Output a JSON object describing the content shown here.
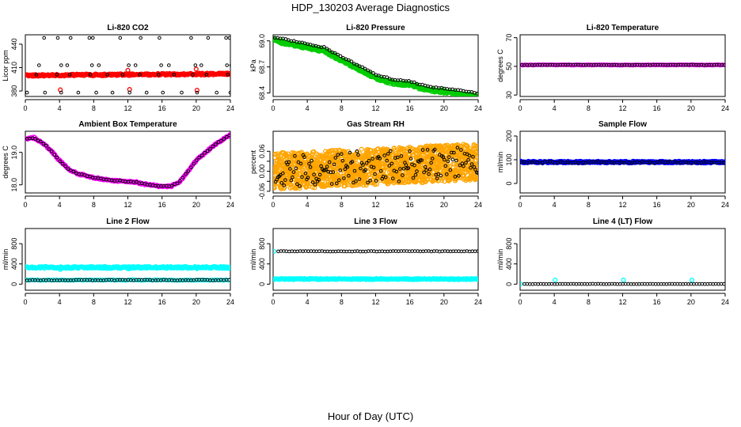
{
  "title": "HDP_130203  Average Diagnostics",
  "xlabel": "Hour of Day (UTC)",
  "colors": {
    "red": "#ff0000",
    "green": "#00cc00",
    "magenta": "#ff00ff",
    "orange": "#ffa500",
    "blue": "#0000ff",
    "cyan": "#00ffff",
    "black": "#000000"
  },
  "chart_data": [
    {
      "type": "scatter",
      "title": "Li-820 CO2",
      "ylabel": "Licor ppm",
      "xlim": [
        0,
        24
      ],
      "ylim": [
        373,
        452
      ],
      "xticks": [
        0,
        4,
        8,
        12,
        16,
        20,
        24
      ],
      "yticks": [
        380,
        410,
        440
      ],
      "series": [
        {
          "color": "red",
          "kind": "dense",
          "from": 0,
          "to": 24,
          "step": 0.08,
          "base": 400.0,
          "slope": 0.08,
          "noise": 1.2
        },
        {
          "color": "red",
          "kind": "points",
          "x": [
            4.1,
            12.2,
            20.1,
            12.0,
            20.0
          ],
          "y": [
            381.5,
            382.0,
            381.0,
            406.5,
            408.0
          ]
        },
        {
          "color": "black",
          "kind": "points",
          "x": [
            0.2,
            2.3,
            4.2,
            6.2,
            8.3,
            10.2,
            12.2,
            14.2,
            16.1,
            18.3,
            20.1,
            22.4,
            24.0,
            1.3,
            3.7,
            5.2,
            7.6,
            9.6,
            11.4,
            13.4,
            15.6,
            17.4,
            19.6,
            21.2,
            23.7,
            1.6,
            4.2,
            4.9,
            7.8,
            8.6,
            12.1,
            12.9,
            15.9,
            16.8,
            19.9,
            20.6,
            23.6,
            24.1,
            2.2,
            3.8,
            5.3,
            7.5,
            7.9,
            11.1,
            13.5,
            15.7,
            19.4,
            21.4,
            23.5,
            23.9
          ],
          "y": [
            378.0,
            378.0,
            378.0,
            378.0,
            378.0,
            378.0,
            378.0,
            378.0,
            378.0,
            378.0,
            378.0,
            378.0,
            378.0,
            401.0,
            401.0,
            401.0,
            401.0,
            401.0,
            401.0,
            401.0,
            401.0,
            401.0,
            401.0,
            401.0,
            401.0,
            413.0,
            413.0,
            413.0,
            413.0,
            413.0,
            413.0,
            413.0,
            413.0,
            413.0,
            413.0,
            413.0,
            413.0,
            413.0,
            448.0,
            448.0,
            448.0,
            448.0,
            448.0,
            448.0,
            448.0,
            448.0,
            448.0,
            448.0,
            448.0,
            448.0
          ]
        }
      ]
    },
    {
      "type": "scatter",
      "title": "Li-820 Pressure",
      "ylabel": "kPa",
      "xlim": [
        0,
        24
      ],
      "ylim": [
        68.36,
        69.07
      ],
      "xticks": [
        0,
        4,
        8,
        12,
        16,
        20,
        24
      ],
      "yticks": [
        68.4,
        68.7,
        69.0
      ],
      "yticklabels": [
        "68.4",
        "68.7",
        "69.0"
      ],
      "series": [
        {
          "color": "green",
          "kind": "dense",
          "from": 0,
          "to": 24,
          "step": 0.06,
          "curve": [
            [
              0,
              69.03
            ],
            [
              2,
              68.99
            ],
            [
              4,
              68.95
            ],
            [
              6,
              68.91
            ],
            [
              8,
              68.8
            ],
            [
              10,
              68.7
            ],
            [
              12,
              68.6
            ],
            [
              14,
              68.54
            ],
            [
              16,
              68.52
            ],
            [
              18,
              68.46
            ],
            [
              20,
              68.44
            ],
            [
              22,
              68.41
            ],
            [
              24,
              68.38
            ]
          ],
          "offset": -0.025,
          "noise": 0.018
        },
        {
          "color": "black",
          "kind": "dense",
          "from": 0.2,
          "to": 24,
          "step": 0.32,
          "curve": [
            [
              0,
              69.03
            ],
            [
              2,
              68.99
            ],
            [
              4,
              68.95
            ],
            [
              6,
              68.91
            ],
            [
              8,
              68.8
            ],
            [
              10,
              68.7
            ],
            [
              12,
              68.6
            ],
            [
              14,
              68.54
            ],
            [
              16,
              68.52
            ],
            [
              18,
              68.46
            ],
            [
              20,
              68.44
            ],
            [
              22,
              68.41
            ],
            [
              24,
              68.38
            ]
          ],
          "offset": 0.015,
          "noise": 0.006
        }
      ]
    },
    {
      "type": "scatter",
      "title": "Li-820 Temperature",
      "ylabel": "degrees C",
      "xlim": [
        0,
        24
      ],
      "ylim": [
        29,
        72
      ],
      "xticks": [
        0,
        4,
        8,
        12,
        16,
        20,
        24
      ],
      "yticks": [
        30,
        50,
        70
      ],
      "series": [
        {
          "color": "magenta",
          "kind": "dense",
          "from": 0,
          "to": 24,
          "step": 0.3,
          "base": 51.0,
          "noise": 0.15
        },
        {
          "color": "black",
          "kind": "dense",
          "from": 0.2,
          "to": 24,
          "step": 0.3,
          "base": 51.0,
          "noise": 0.15
        }
      ]
    },
    {
      "type": "scatter",
      "title": "Ambient Box Temperature",
      "ylabel": "degrees C",
      "xlim": [
        0,
        24
      ],
      "ylim": [
        17.75,
        19.65
      ],
      "xticks": [
        0,
        4,
        8,
        12,
        16,
        20,
        24
      ],
      "yticks": [
        18.0,
        19.0
      ],
      "yticklabels": [
        "18.0",
        "19.0"
      ],
      "series": [
        {
          "color": "magenta",
          "kind": "dense",
          "from": 0,
          "to": 24,
          "step": 0.1,
          "curve": [
            [
              0,
              19.4
            ],
            [
              1,
              19.45
            ],
            [
              2,
              19.3
            ],
            [
              3,
              19.05
            ],
            [
              4,
              18.75
            ],
            [
              5,
              18.5
            ],
            [
              6,
              18.35
            ],
            [
              8,
              18.22
            ],
            [
              10,
              18.14
            ],
            [
              12,
              18.1
            ],
            [
              13,
              18.08
            ],
            [
              14,
              18.02
            ],
            [
              16,
              17.95
            ],
            [
              17,
              17.95
            ],
            [
              18,
              18.08
            ],
            [
              19,
              18.4
            ],
            [
              20,
              18.75
            ],
            [
              22,
              19.2
            ],
            [
              24,
              19.55
            ]
          ],
          "noise": 0.025
        },
        {
          "color": "black",
          "kind": "dense",
          "from": 0.2,
          "to": 24,
          "step": 0.32,
          "curve": [
            [
              0,
              19.4
            ],
            [
              1,
              19.45
            ],
            [
              2,
              19.3
            ],
            [
              3,
              19.05
            ],
            [
              4,
              18.75
            ],
            [
              5,
              18.5
            ],
            [
              6,
              18.35
            ],
            [
              8,
              18.22
            ],
            [
              10,
              18.14
            ],
            [
              12,
              18.1
            ],
            [
              13,
              18.08
            ],
            [
              14,
              18.02
            ],
            [
              16,
              17.95
            ],
            [
              17,
              17.95
            ],
            [
              18,
              18.08
            ],
            [
              19,
              18.4
            ],
            [
              20,
              18.75
            ],
            [
              22,
              19.2
            ],
            [
              24,
              19.55
            ]
          ],
          "noise": 0.015
        }
      ]
    },
    {
      "type": "scatter",
      "title": "Gas Stream RH",
      "ylabel": "percent",
      "xlim": [
        0,
        24
      ],
      "ylim": [
        -0.065,
        0.12
      ],
      "xticks": [
        0,
        4,
        8,
        12,
        16,
        20,
        24
      ],
      "yticks": [
        -0.06,
        -0.03,
        0.0,
        0.03,
        0.06
      ],
      "yticklabels": [
        "-0.06",
        "",
        "0.00",
        "",
        "0.06"
      ],
      "series": [
        {
          "color": "orange",
          "kind": "dense",
          "from": 0,
          "to": 24,
          "step": 0.015,
          "base": 0.0,
          "slope": 0.0012,
          "noise": 0.055
        },
        {
          "color": "black",
          "kind": "dense",
          "from": 0.3,
          "to": 24,
          "step": 0.14,
          "base": 0.0,
          "slope": 0.0012,
          "noise": 0.05
        }
      ]
    },
    {
      "type": "scatter",
      "title": "Sample Flow",
      "ylabel": "ml/min",
      "xlim": [
        0,
        24
      ],
      "ylim": [
        -40,
        220
      ],
      "xticks": [
        0,
        4,
        8,
        12,
        16,
        20,
        24
      ],
      "yticks": [
        0,
        100,
        200
      ],
      "series": [
        {
          "color": "blue",
          "kind": "dense",
          "from": 0,
          "to": 24,
          "step": 0.08,
          "base": 90,
          "noise": 4
        },
        {
          "color": "black",
          "kind": "dense",
          "from": 0.2,
          "to": 24,
          "step": 0.3,
          "base": 89,
          "noise": 3
        }
      ]
    },
    {
      "type": "scatter",
      "title": "Line 2 Flow",
      "ylabel": "ml/min",
      "xlim": [
        0,
        24
      ],
      "ylim": [
        -120,
        1100
      ],
      "xticks": [
        0,
        4,
        8,
        12,
        16,
        20,
        24
      ],
      "yticks": [
        0,
        400,
        800
      ],
      "series": [
        {
          "color": "cyan",
          "kind": "dense",
          "from": 0,
          "to": 24,
          "step": 0.08,
          "base": 330,
          "noise": 20
        },
        {
          "color": "cyan",
          "kind": "points",
          "x": [
            4.1,
            12.1,
            20.1
          ],
          "y": [
            290,
            300,
            305
          ]
        },
        {
          "color": "cyan",
          "kind": "dense",
          "from": 0.1,
          "to": 24,
          "step": 0.32,
          "base": 80,
          "noise": 6
        },
        {
          "color": "black",
          "kind": "dense",
          "from": 0.2,
          "to": 24,
          "step": 0.32,
          "base": 80,
          "noise": 6
        }
      ]
    },
    {
      "type": "scatter",
      "title": "Line 3 Flow",
      "ylabel": "ml/min",
      "xlim": [
        0,
        24
      ],
      "ylim": [
        -120,
        1100
      ],
      "xticks": [
        0,
        4,
        8,
        12,
        16,
        20,
        24
      ],
      "yticks": [
        0,
        400,
        800
      ],
      "series": [
        {
          "color": "cyan",
          "kind": "points",
          "x": [
            0.1
          ],
          "y": [
            650
          ]
        },
        {
          "color": "cyan",
          "kind": "dense",
          "from": 0,
          "to": 24,
          "step": 0.08,
          "base": 100,
          "noise": 12
        },
        {
          "color": "black",
          "kind": "dense",
          "from": 0.6,
          "to": 24,
          "step": 0.32,
          "base": 650,
          "noise": 5
        }
      ]
    },
    {
      "type": "scatter",
      "title": "Line 4 (LT) Flow",
      "ylabel": "ml/min",
      "xlim": [
        0,
        24
      ],
      "ylim": [
        -120,
        1100
      ],
      "xticks": [
        0,
        4,
        8,
        12,
        16,
        20,
        24
      ],
      "yticks": [
        0,
        400,
        800
      ],
      "series": [
        {
          "color": "cyan",
          "kind": "points",
          "x": [
            0.05,
            4.1,
            12.1,
            20.1
          ],
          "y": [
            5,
            80,
            80,
            80
          ]
        },
        {
          "color": "black",
          "kind": "dense",
          "from": 0.5,
          "to": 24,
          "step": 0.32,
          "base": 3,
          "noise": 3
        }
      ]
    }
  ]
}
